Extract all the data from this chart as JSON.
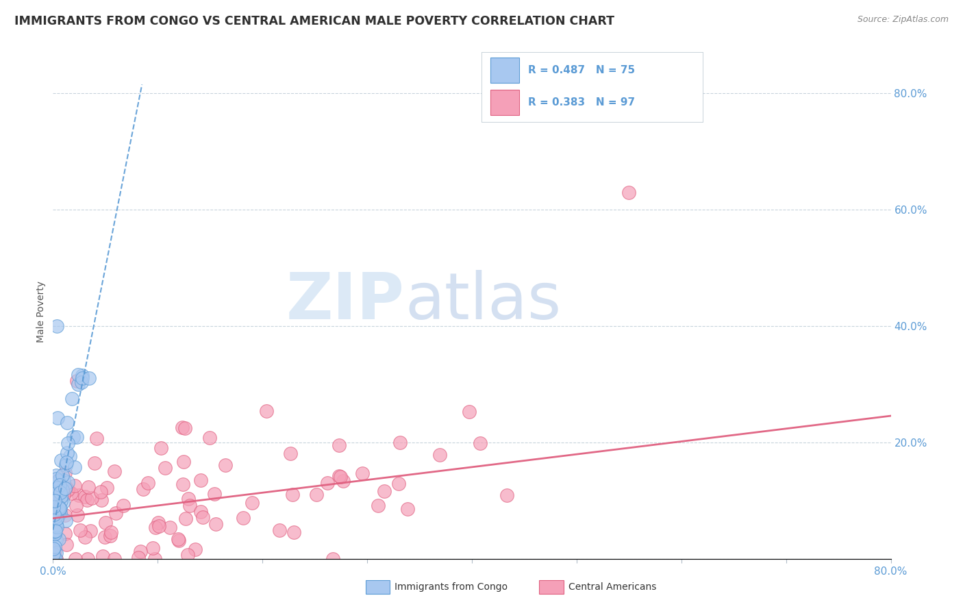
{
  "title": "IMMIGRANTS FROM CONGO VS CENTRAL AMERICAN MALE POVERTY CORRELATION CHART",
  "source": "Source: ZipAtlas.com",
  "ylabel": "Male Poverty",
  "xlim": [
    0.0,
    0.8
  ],
  "ylim": [
    0.0,
    0.85
  ],
  "legend1_R": "0.487",
  "legend1_N": "75",
  "legend2_R": "0.383",
  "legend2_N": "97",
  "congo_color": "#a8c8f0",
  "central_color": "#f5a0b8",
  "congo_line_color": "#5b9bd5",
  "central_line_color": "#e06080",
  "watermark": "ZIPatlas",
  "watermark_color_zip": "#c0d8f0",
  "watermark_color_atlas": "#a0bce0",
  "title_color": "#303030",
  "title_fontsize": 12.5,
  "background_color": "#ffffff",
  "grid_color": "#c8d4dc",
  "congo_trend_slope": 9.0,
  "congo_trend_intercept": 0.05,
  "central_trend_slope": 0.22,
  "central_trend_intercept": 0.07
}
